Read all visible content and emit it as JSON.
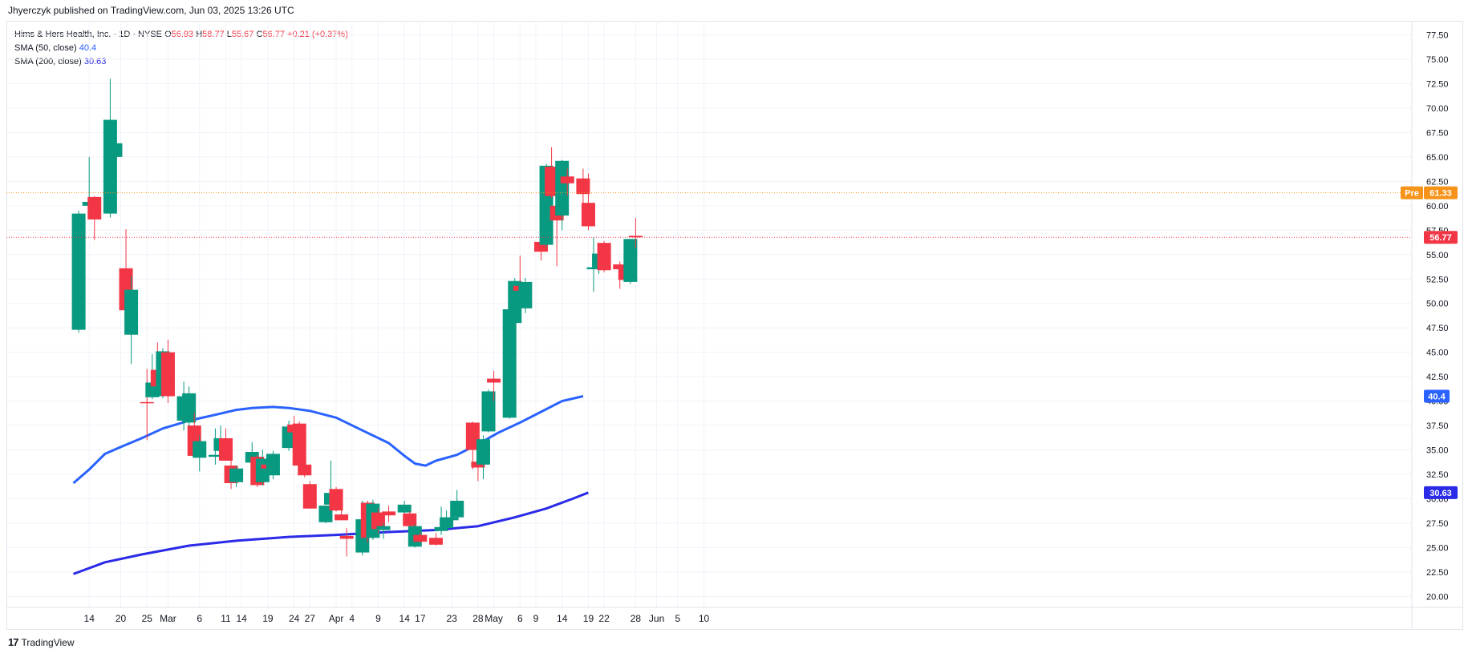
{
  "header": {
    "published": "Jhyerczyk published on TradingView.com, Jun 03, 2025 13:26 UTC"
  },
  "legend": {
    "symbol": "Hims & Hers Health, Inc. · 1D · NYSE",
    "o_label": "O",
    "o": "56.93",
    "h_label": "H",
    "h": "58.77",
    "l_label": "L",
    "l": "55.67",
    "c_label": "C",
    "c": "56.77",
    "change": "+0.21 (+0.37%)",
    "sma50_label": "SMA (50, close)",
    "sma50_value": "40.4",
    "sma200_label": "SMA (200, close)",
    "sma200_value": "30.63"
  },
  "footer": {
    "logo": "17",
    "brand": "TradingView"
  },
  "colors": {
    "up": "#089981",
    "down": "#f23645",
    "sma50": "#2962ff",
    "sma200": "#2a2ae8",
    "pre": "#f7931a"
  },
  "chart_data": {
    "type": "candlestick",
    "yticks": [
      "77.50",
      "75.00",
      "72.50",
      "70.00",
      "67.50",
      "65.00",
      "62.50",
      "60.00",
      "57.50",
      "55.00",
      "52.50",
      "50.00",
      "47.50",
      "45.00",
      "42.50",
      "40.00",
      "37.50",
      "35.00",
      "32.50",
      "30.00",
      "27.50",
      "25.00",
      "22.50",
      "20.00"
    ],
    "ylim": [
      18.5,
      79
    ],
    "xticks": [
      {
        "label": "14",
        "d": 14
      },
      {
        "label": "20",
        "d": 20
      },
      {
        "label": "25",
        "d": 25
      },
      {
        "label": "Mar",
        "d": 29
      },
      {
        "label": "6",
        "d": 35
      },
      {
        "label": "11",
        "d": 40
      },
      {
        "label": "14",
        "d": 43
      },
      {
        "label": "19",
        "d": 48
      },
      {
        "label": "24",
        "d": 53
      },
      {
        "label": "27",
        "d": 56
      },
      {
        "label": "Apr",
        "d": 61
      },
      {
        "label": "4",
        "d": 64
      },
      {
        "label": "9",
        "d": 69
      },
      {
        "label": "14",
        "d": 74
      },
      {
        "label": "17",
        "d": 77
      },
      {
        "label": "23",
        "d": 83
      },
      {
        "label": "28",
        "d": 88
      },
      {
        "label": "May",
        "d": 91
      },
      {
        "label": "6",
        "d": 96
      },
      {
        "label": "9",
        "d": 99
      },
      {
        "label": "14",
        "d": 104
      },
      {
        "label": "19",
        "d": 109
      },
      {
        "label": "22",
        "d": 112
      },
      {
        "label": "28",
        "d": 118
      },
      {
        "label": "Jun",
        "d": 122
      },
      {
        "label": "5",
        "d": 126
      },
      {
        "label": "10",
        "d": 131
      }
    ],
    "candles": [
      {
        "d": 12,
        "o": 47.3,
        "h": 59.5,
        "l": 47.0,
        "c": 59.2
      },
      {
        "d": 14,
        "o": 60.0,
        "h": 65.0,
        "l": 58.8,
        "c": 60.4
      },
      {
        "d": 15,
        "o": 60.9,
        "h": 61.0,
        "l": 56.5,
        "c": 58.6
      },
      {
        "d": 18,
        "o": 59.2,
        "h": 73.0,
        "l": 58.8,
        "c": 68.8
      },
      {
        "d": 19,
        "o": 65.0,
        "h": 67.5,
        "l": 59.5,
        "c": 66.4
      },
      {
        "d": 21,
        "o": 53.6,
        "h": 57.6,
        "l": 49.0,
        "c": 49.3
      },
      {
        "d": 22,
        "o": 46.8,
        "h": 52.8,
        "l": 43.8,
        "c": 51.4
      },
      {
        "d": 25,
        "o": 39.9,
        "h": 43.3,
        "l": 36.0,
        "c": 39.8
      },
      {
        "d": 26,
        "o": 40.4,
        "h": 44.8,
        "l": 40.2,
        "c": 41.9
      },
      {
        "d": 27,
        "o": 43.2,
        "h": 46.0,
        "l": 40.5,
        "c": 41.5
      },
      {
        "d": 28,
        "o": 40.5,
        "h": 45.4,
        "l": 40.3,
        "c": 45.1
      },
      {
        "d": 29,
        "o": 45.0,
        "h": 46.3,
        "l": 39.8,
        "c": 40.5
      },
      {
        "d": 32,
        "o": 38.0,
        "h": 42.0,
        "l": 37.0,
        "c": 40.5
      },
      {
        "d": 33,
        "o": 37.8,
        "h": 41.5,
        "l": 37.2,
        "c": 40.8
      },
      {
        "d": 34,
        "o": 37.5,
        "h": 38.8,
        "l": 34.2,
        "c": 34.4
      },
      {
        "d": 35,
        "o": 34.2,
        "h": 36.5,
        "l": 32.8,
        "c": 35.9
      },
      {
        "d": 38,
        "o": 34.3,
        "h": 37.2,
        "l": 33.5,
        "c": 34.5
      },
      {
        "d": 39,
        "o": 34.9,
        "h": 37.5,
        "l": 34.5,
        "c": 36.2
      },
      {
        "d": 40,
        "o": 36.2,
        "h": 37.2,
        "l": 33.9,
        "c": 33.9
      },
      {
        "d": 41,
        "o": 33.4,
        "h": 34.2,
        "l": 31.0,
        "c": 31.6
      },
      {
        "d": 42,
        "o": 31.7,
        "h": 33.4,
        "l": 31.2,
        "c": 33.1
      },
      {
        "d": 45,
        "o": 33.7,
        "h": 35.8,
        "l": 33.3,
        "c": 34.8
      },
      {
        "d": 46,
        "o": 34.3,
        "h": 34.5,
        "l": 31.2,
        "c": 31.4
      },
      {
        "d": 47,
        "o": 31.7,
        "h": 35.0,
        "l": 31.4,
        "c": 34.1
      },
      {
        "d": 48,
        "o": 33.5,
        "h": 34.0,
        "l": 32.7,
        "c": 33.1
      },
      {
        "d": 49,
        "o": 32.4,
        "h": 34.9,
        "l": 32.0,
        "c": 34.6
      },
      {
        "d": 52,
        "o": 35.2,
        "h": 38.0,
        "l": 34.9,
        "c": 37.4
      },
      {
        "d": 53,
        "o": 37.6,
        "h": 38.5,
        "l": 35.8,
        "c": 36.8
      },
      {
        "d": 54,
        "o": 37.7,
        "h": 37.9,
        "l": 33.3,
        "c": 33.4
      },
      {
        "d": 55,
        "o": 33.5,
        "h": 33.7,
        "l": 32.2,
        "c": 32.4
      },
      {
        "d": 56,
        "o": 31.5,
        "h": 31.8,
        "l": 29.0,
        "c": 29.0
      },
      {
        "d": 59,
        "o": 27.6,
        "h": 29.2,
        "l": 27.5,
        "c": 29.3
      },
      {
        "d": 60,
        "o": 29.4,
        "h": 33.9,
        "l": 29.2,
        "c": 30.6
      },
      {
        "d": 61,
        "o": 31.0,
        "h": 31.2,
        "l": 28.7,
        "c": 28.8
      },
      {
        "d": 62,
        "o": 28.4,
        "h": 28.9,
        "l": 27.8,
        "c": 27.8
      },
      {
        "d": 63,
        "o": 26.2,
        "h": 27.0,
        "l": 24.1,
        "c": 25.9
      },
      {
        "d": 66,
        "o": 24.5,
        "h": 29.8,
        "l": 24.2,
        "c": 27.9
      },
      {
        "d": 67,
        "o": 29.6,
        "h": 29.8,
        "l": 25.5,
        "c": 26.0
      },
      {
        "d": 68,
        "o": 26.0,
        "h": 29.9,
        "l": 25.8,
        "c": 29.5
      },
      {
        "d": 69,
        "o": 28.6,
        "h": 29.0,
        "l": 26.5,
        "c": 26.9
      },
      {
        "d": 70,
        "o": 26.8,
        "h": 27.5,
        "l": 25.9,
        "c": 27.2
      },
      {
        "d": 71,
        "o": 28.7,
        "h": 29.3,
        "l": 27.6,
        "c": 28.3
      },
      {
        "d": 74,
        "o": 28.6,
        "h": 29.8,
        "l": 28.4,
        "c": 29.4
      },
      {
        "d": 75,
        "o": 28.5,
        "h": 28.7,
        "l": 26.8,
        "c": 27.2
      },
      {
        "d": 76,
        "o": 25.1,
        "h": 27.4,
        "l": 25.0,
        "c": 27.2
      },
      {
        "d": 77,
        "o": 26.3,
        "h": 26.6,
        "l": 25.5,
        "c": 25.6
      },
      {
        "d": 80,
        "o": 26.0,
        "h": 26.5,
        "l": 25.2,
        "c": 25.3
      },
      {
        "d": 81,
        "o": 26.7,
        "h": 29.2,
        "l": 26.3,
        "c": 27.1
      },
      {
        "d": 82,
        "o": 27.0,
        "h": 28.8,
        "l": 27.0,
        "c": 28.1
      },
      {
        "d": 83,
        "o": 27.8,
        "h": 28.7,
        "l": 27.5,
        "c": 28.1
      },
      {
        "d": 84,
        "o": 28.1,
        "h": 30.9,
        "l": 28.0,
        "c": 29.8
      },
      {
        "d": 87,
        "o": 37.8,
        "h": 37.9,
        "l": 33.0,
        "c": 35.0
      },
      {
        "d": 88,
        "o": 33.8,
        "h": 34.6,
        "l": 31.8,
        "c": 33.2
      },
      {
        "d": 89,
        "o": 33.5,
        "h": 36.5,
        "l": 32.0,
        "c": 36.1
      },
      {
        "d": 90,
        "o": 36.9,
        "h": 41.2,
        "l": 36.8,
        "c": 41.0
      },
      {
        "d": 91,
        "o": 42.3,
        "h": 43.1,
        "l": 40.0,
        "c": 41.9
      },
      {
        "d": 94,
        "o": 38.3,
        "h": 50.6,
        "l": 38.2,
        "c": 49.4
      },
      {
        "d": 95,
        "o": 48.0,
        "h": 52.6,
        "l": 47.3,
        "c": 52.3
      },
      {
        "d": 96,
        "o": 51.8,
        "h": 54.9,
        "l": 50.0,
        "c": 51.3
      },
      {
        "d": 97,
        "o": 49.5,
        "h": 52.6,
        "l": 49.0,
        "c": 52.2
      },
      {
        "d": 100,
        "o": 56.3,
        "h": 58.7,
        "l": 54.4,
        "c": 55.3
      },
      {
        "d": 101,
        "o": 56.0,
        "h": 64.3,
        "l": 55.8,
        "c": 64.1
      },
      {
        "d": 102,
        "o": 64.0,
        "h": 66.0,
        "l": 60.8,
        "c": 61.0
      },
      {
        "d": 103,
        "o": 60.0,
        "h": 63.2,
        "l": 53.8,
        "c": 58.5
      },
      {
        "d": 104,
        "o": 59.0,
        "h": 64.7,
        "l": 57.5,
        "c": 64.6
      },
      {
        "d": 105,
        "o": 63.0,
        "h": 63.8,
        "l": 61.0,
        "c": 62.3
      },
      {
        "d": 108,
        "o": 62.8,
        "h": 63.8,
        "l": 59.8,
        "c": 61.2
      },
      {
        "d": 109,
        "o": 60.3,
        "h": 63.3,
        "l": 57.5,
        "c": 57.9
      },
      {
        "d": 110,
        "o": 53.5,
        "h": 56.8,
        "l": 51.2,
        "c": 53.7
      },
      {
        "d": 111,
        "o": 53.6,
        "h": 55.3,
        "l": 53.0,
        "c": 55.1
      },
      {
        "d": 112,
        "o": 56.2,
        "h": 56.4,
        "l": 53.2,
        "c": 53.4
      },
      {
        "d": 115,
        "o": 54.0,
        "h": 54.3,
        "l": 51.5,
        "c": 53.5
      },
      {
        "d": 116,
        "o": 54.0,
        "h": 55.3,
        "l": 52.2,
        "c": 52.4
      },
      {
        "d": 117,
        "o": 52.2,
        "h": 56.6,
        "l": 52.0,
        "c": 56.6
      },
      {
        "d": 118,
        "o": 56.93,
        "h": 58.77,
        "l": 55.67,
        "c": 56.77
      }
    ],
    "sma50": [
      [
        11,
        31.6
      ],
      [
        14,
        33.0
      ],
      [
        17,
        34.6
      ],
      [
        20,
        35.3
      ],
      [
        24,
        36.2
      ],
      [
        28,
        37.2
      ],
      [
        33,
        38.0
      ],
      [
        38,
        38.6
      ],
      [
        42,
        39.1
      ],
      [
        45,
        39.3
      ],
      [
        49,
        39.4
      ],
      [
        52,
        39.3
      ],
      [
        56,
        39.0
      ],
      [
        61,
        38.3
      ],
      [
        66,
        37.0
      ],
      [
        71,
        35.7
      ],
      [
        74,
        34.4
      ],
      [
        76,
        33.6
      ],
      [
        78,
        33.4
      ],
      [
        80,
        33.9
      ],
      [
        84,
        34.5
      ],
      [
        88,
        35.6
      ],
      [
        92,
        36.8
      ],
      [
        96,
        37.8
      ],
      [
        100,
        38.9
      ],
      [
        104,
        40.0
      ],
      [
        108,
        40.5
      ]
    ],
    "sma200": [
      [
        11,
        22.3
      ],
      [
        17,
        23.5
      ],
      [
        24,
        24.3
      ],
      [
        33,
        25.2
      ],
      [
        42,
        25.7
      ],
      [
        52,
        26.1
      ],
      [
        61,
        26.3
      ],
      [
        71,
        26.6
      ],
      [
        80,
        26.8
      ],
      [
        88,
        27.2
      ],
      [
        95,
        28.1
      ],
      [
        101,
        29.0
      ],
      [
        106,
        30.0
      ],
      [
        109,
        30.63
      ]
    ],
    "last_price_label": "56.77",
    "last_price": 56.77,
    "pre_label": "Pre",
    "pre_value_label": "61.33",
    "pre_value": 61.33,
    "sma50_axis_label": "40.4",
    "sma200_axis_label": "30.63"
  }
}
